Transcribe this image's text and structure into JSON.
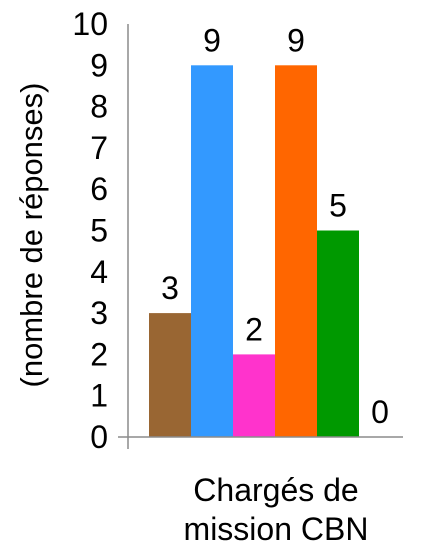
{
  "chart_data": {
    "type": "bar",
    "ylabel": "(nombre de réponses)",
    "xlabel": [
      "Chargés de",
      "mission CBN"
    ],
    "ylim": [
      0,
      10
    ],
    "yticks": [
      0,
      1,
      2,
      3,
      4,
      5,
      6,
      7,
      8,
      9,
      10
    ],
    "grid": false,
    "values": [
      3,
      9,
      2,
      9,
      5,
      0
    ],
    "colors": [
      "#996633",
      "#3399ff",
      "#ff33cc",
      "#ff6600",
      "#009900",
      "#c0c0c0"
    ]
  }
}
